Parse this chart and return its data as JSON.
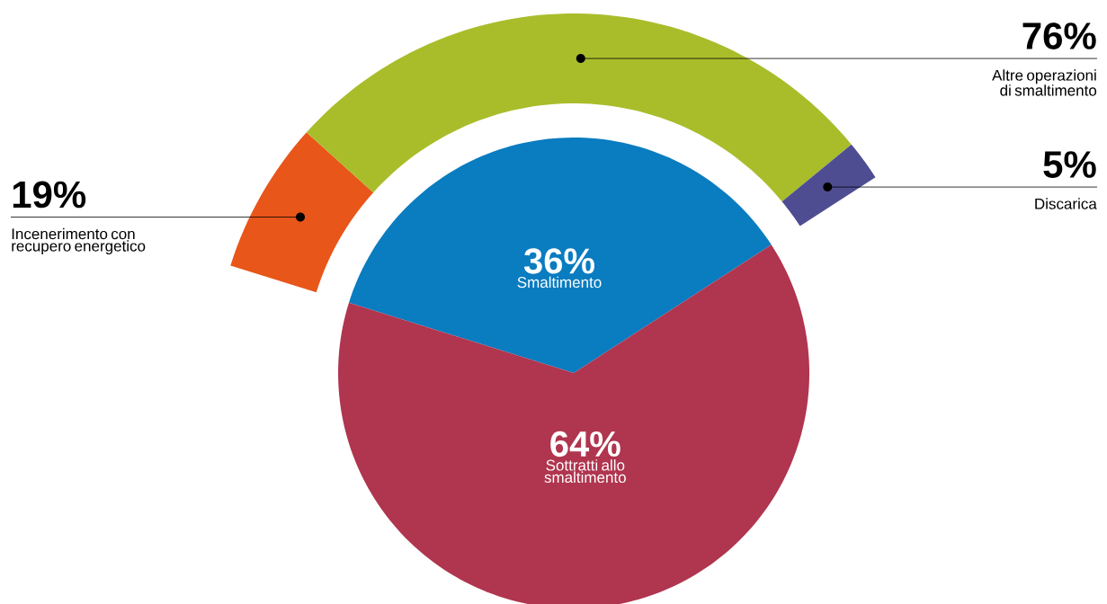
{
  "chart_data": [
    {
      "type": "pie",
      "categories": [
        "Smaltimento",
        "Sottratti allo smaltimento"
      ],
      "values": [
        36,
        64
      ],
      "colors": [
        "#0a7cc0",
        "#b0354f"
      ],
      "value_labels": [
        "36%",
        "64%"
      ]
    },
    {
      "type": "donut",
      "categories": [
        "Incenerimento con recupero energetico",
        "Altre operazioni di smaltimento",
        "Discarica"
      ],
      "values": [
        19,
        76,
        5
      ],
      "colors": [
        "#e8561a",
        "#a9bd2b",
        "#4f4d92"
      ],
      "value_labels": [
        "19%",
        "76%",
        "5%"
      ]
    }
  ]
}
